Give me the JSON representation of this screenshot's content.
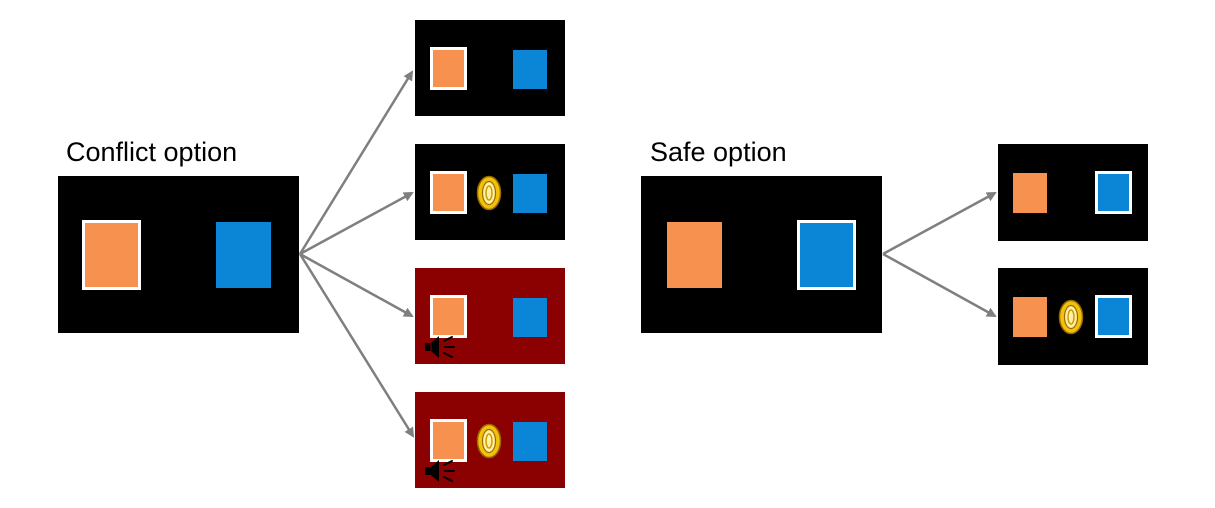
{
  "colors": {
    "background": "#ffffff",
    "screen_dark": "#000000",
    "screen_punish": "#8b0000",
    "orange": "#f79150",
    "blue": "#0b86d6",
    "selection_border": "#ffffff",
    "arrow": "#7f7f7f",
    "coin_gold": "#f2c20b"
  },
  "conflict": {
    "title": "Conflict option",
    "chosen_side": "left",
    "outcomes": [
      {
        "background": "dark",
        "selected": "left",
        "coin": false,
        "sound": false
      },
      {
        "background": "dark",
        "selected": "left",
        "coin": true,
        "sound": false
      },
      {
        "background": "punish",
        "selected": "left",
        "coin": false,
        "sound": true
      },
      {
        "background": "punish",
        "selected": "left",
        "coin": true,
        "sound": true
      }
    ]
  },
  "safe": {
    "title": "Safe option",
    "chosen_side": "right",
    "outcomes": [
      {
        "background": "dark",
        "selected": "right",
        "coin": false,
        "sound": false
      },
      {
        "background": "dark",
        "selected": "right",
        "coin": true,
        "sound": false
      }
    ]
  },
  "icons": {
    "coin": "coin-icon",
    "sound": "speaker-icon",
    "arrow": "arrow-icon"
  }
}
